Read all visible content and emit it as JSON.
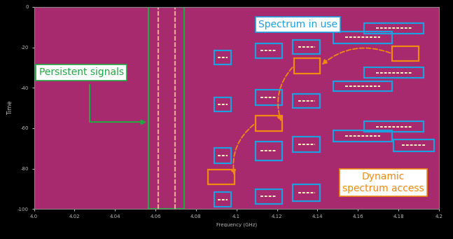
{
  "chart_data": {
    "type": "spectrogram",
    "xlabel": "Frequency (GHz)",
    "ylabel": "Time",
    "xlim": [
      4.0,
      4.2
    ],
    "xticks": [
      4.0,
      4.02,
      4.04,
      4.06,
      4.08,
      4.1,
      4.12,
      4.14,
      4.16,
      4.18,
      4.2
    ],
    "ylim": [
      -100,
      0
    ],
    "yticks": [
      0,
      -20,
      -40,
      -60,
      -80,
      -100
    ],
    "persistent_signals": [
      4.0615,
      4.0695
    ],
    "groups": [
      {
        "name": "Persistent signals",
        "color": "#22a843",
        "regions": [
          {
            "freq": [
              4.0566,
              4.0741
            ],
            "time": [
              0,
              -100
            ]
          }
        ]
      },
      {
        "name": "Spectrum in use",
        "color": "#1e9fe0",
        "regions": [
          {
            "freq": [
              4.089,
              4.0972
            ],
            "time": [
              -21.4,
              -28.3
            ]
          },
          {
            "freq": [
              4.1093,
              4.1224
            ],
            "time": [
              -17.9,
              -25.5
            ]
          },
          {
            "freq": [
              4.1279,
              4.1414
            ],
            "time": [
              -16.2,
              -23.4
            ]
          },
          {
            "freq": [
              4.1479,
              4.1769
            ],
            "time": [
              -12.1,
              -17.9
            ]
          },
          {
            "freq": [
              4.1631,
              4.1924
            ],
            "time": [
              -7.9,
              -13.1
            ]
          },
          {
            "freq": [
              4.1631,
              4.1924
            ],
            "time": [
              -30.0,
              -35.2
            ]
          },
          {
            "freq": [
              4.1479,
              4.1769
            ],
            "time": [
              -36.9,
              -41.7
            ]
          },
          {
            "freq": [
              4.089,
              4.0972
            ],
            "time": [
              -44.8,
              -51.7
            ]
          },
          {
            "freq": [
              4.1093,
              4.1224
            ],
            "time": [
              -41.0,
              -48.6
            ]
          },
          {
            "freq": [
              4.1279,
              4.1414
            ],
            "time": [
              -43.1,
              -50.0
            ]
          },
          {
            "freq": [
              4.1631,
              4.1924
            ],
            "time": [
              -56.6,
              -61.7
            ]
          },
          {
            "freq": [
              4.1479,
              4.1769
            ],
            "time": [
              -61.0,
              -66.6
            ]
          },
          {
            "freq": [
              4.1776,
              4.1976
            ],
            "time": [
              -65.5,
              -71.4
            ]
          },
          {
            "freq": [
              4.089,
              4.0972
            ],
            "time": [
              -69.7,
              -77.2
            ]
          },
          {
            "freq": [
              4.1093,
              4.1224
            ],
            "time": [
              -66.6,
              -75.9
            ]
          },
          {
            "freq": [
              4.1279,
              4.1414
            ],
            "time": [
              -64.1,
              -71.7
            ]
          },
          {
            "freq": [
              4.089,
              4.0972
            ],
            "time": [
              -91.7,
              -99.0
            ]
          },
          {
            "freq": [
              4.1093,
              4.1224
            ],
            "time": [
              -90.0,
              -97.6
            ]
          },
          {
            "freq": [
              4.1279,
              4.1414
            ],
            "time": [
              -87.9,
              -95.9
            ]
          }
        ]
      },
      {
        "name": "Dynamic\nspectrum access",
        "color": "#f08a10",
        "regions": [
          {
            "freq": [
              4.1769,
              4.19
            ],
            "time": [
              -19.3,
              -26.9
            ]
          },
          {
            "freq": [
              4.1283,
              4.1414
            ],
            "time": [
              -25.5,
              -32.8
            ]
          },
          {
            "freq": [
              4.1093,
              4.1224
            ],
            "time": [
              -53.8,
              -61.4
            ]
          },
          {
            "freq": [
              4.0859,
              4.099
            ],
            "time": [
              -80.3,
              -87.9
            ]
          }
        ]
      }
    ]
  }
}
